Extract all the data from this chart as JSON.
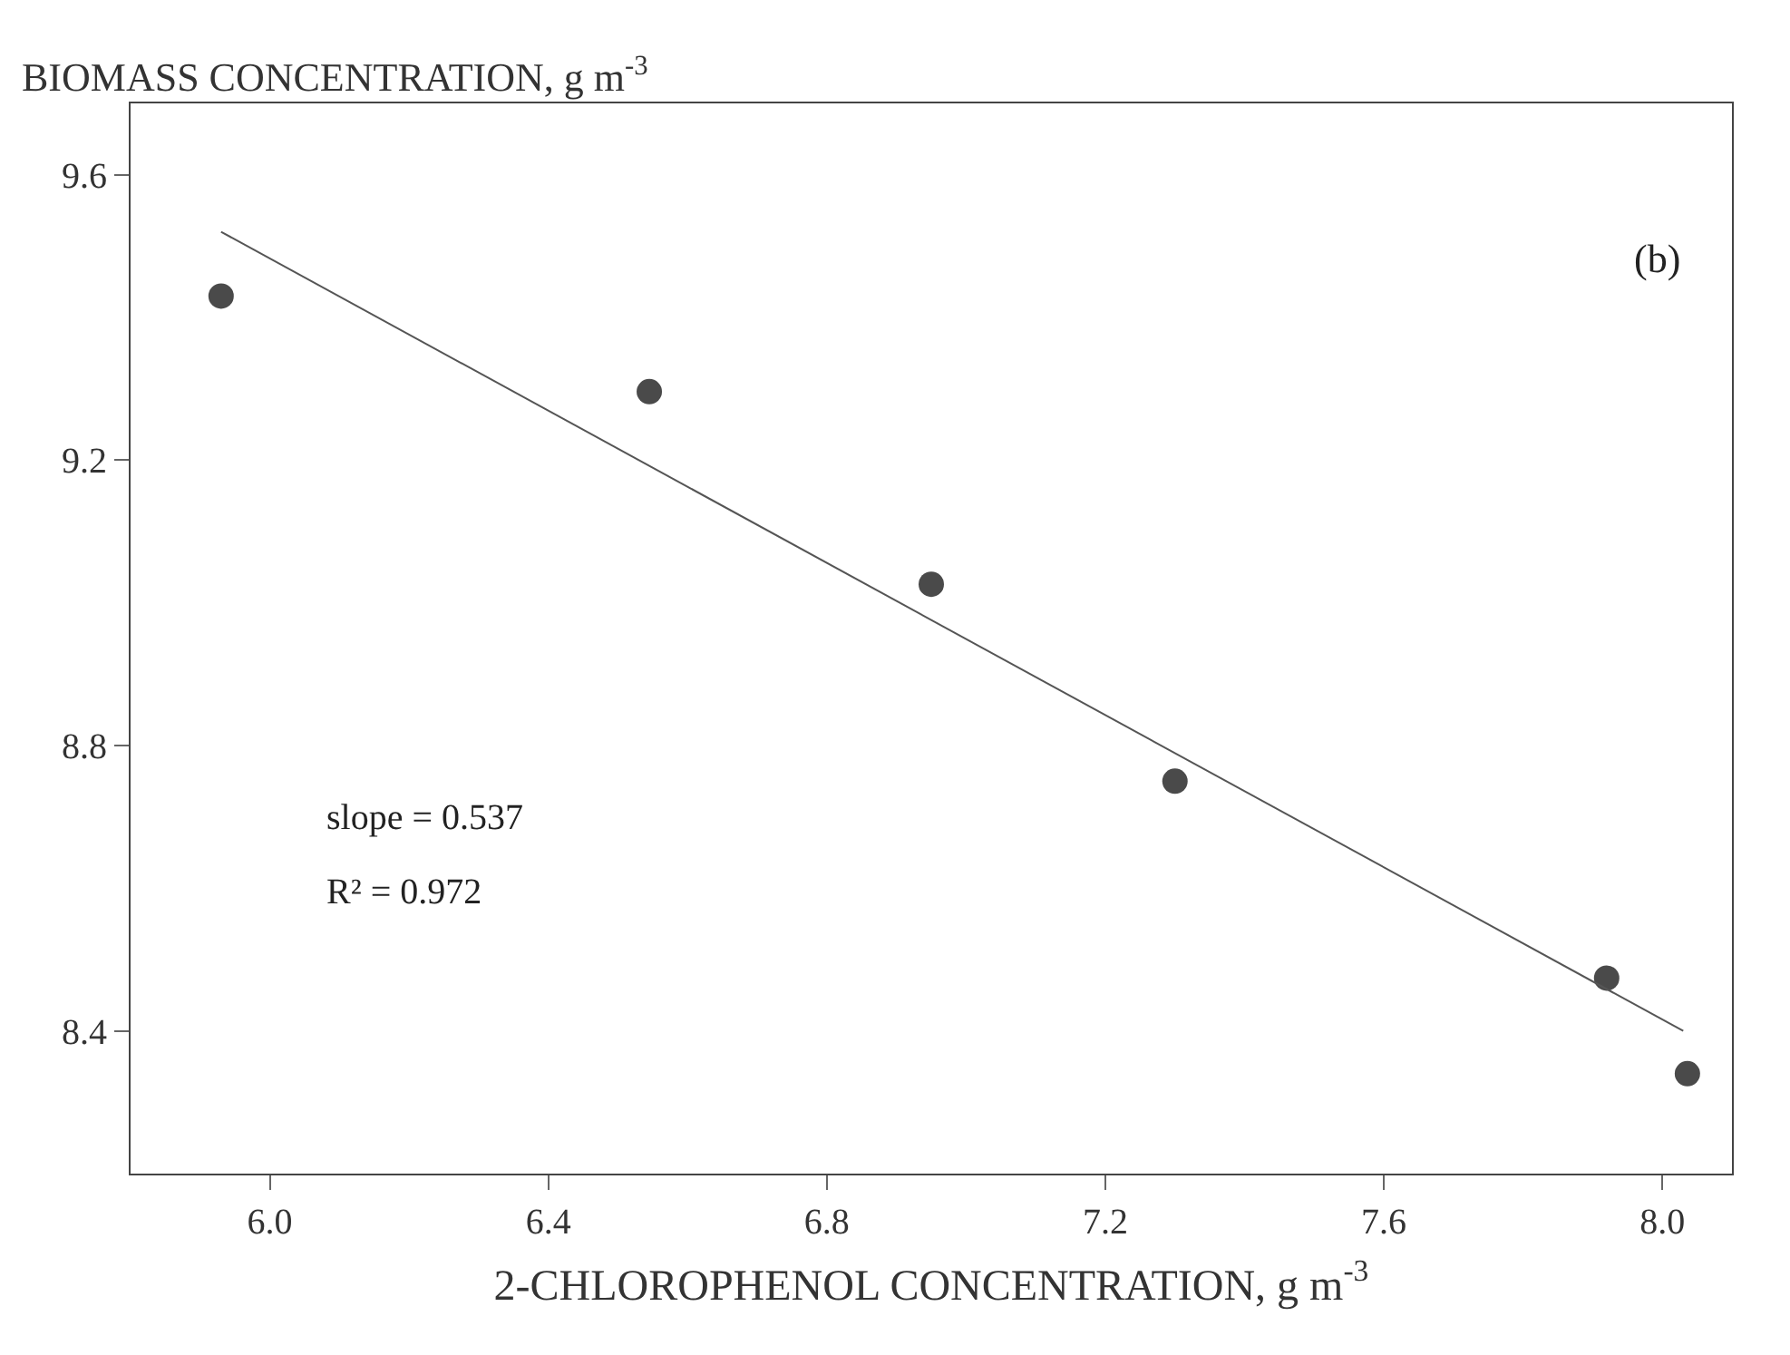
{
  "chart_data": {
    "type": "scatter",
    "xlabel": "2-CHLOROPHENOL CONCENTRATION, g m$^{-3}$",
    "ylabel": "BIOMASS CONCENTRATION, g m$^{-3}$",
    "x": [
      5.93,
      6.545,
      6.95,
      7.3,
      7.92,
      8.036
    ],
    "series": [
      {
        "color": "#4a4a4a",
        "marker": "circle",
        "values": [
          9.43,
          9.296,
          9.026,
          8.75,
          8.474,
          8.34
        ]
      },
      {
        "type": "line",
        "color": "#555555",
        "x": [
          5.93,
          8.03
        ],
        "values": [
          9.52,
          8.4
        ]
      }
    ],
    "xlim": [
      5.8,
      8.1
    ],
    "ylim": [
      8.2,
      9.7
    ],
    "xticks": [
      {
        "value": 6,
        "label": "6.0"
      },
      {
        "value": 6.4,
        "label": "6.4"
      },
      {
        "value": 6.8,
        "label": "6.8"
      },
      {
        "value": 7.2,
        "label": "7.2"
      },
      {
        "value": 7.6,
        "label": "7.6"
      },
      {
        "value": 8,
        "label": "8.0"
      }
    ],
    "yticks": [
      {
        "value": 8.4,
        "label": "8.4"
      },
      {
        "value": 8.8,
        "label": "8.8"
      },
      {
        "value": 9.2,
        "label": "9.2"
      },
      {
        "value": 9.6,
        "label": "9.6"
      }
    ],
    "annotations": [
      "(b)",
      "slope = 0.537",
      "R² = 0.972"
    ]
  }
}
